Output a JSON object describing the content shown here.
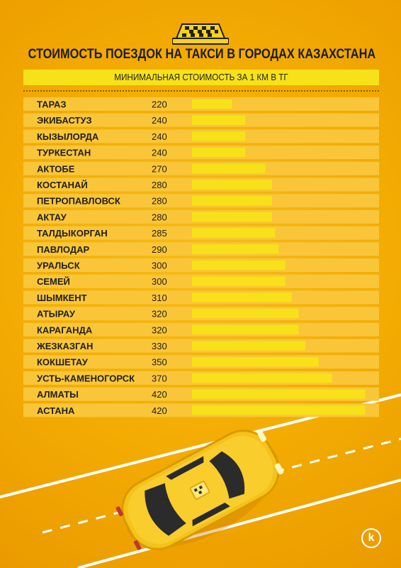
{
  "header": {
    "title": "СТОИМОСТЬ ПОЕЗДОК НА ТАКСИ В ГОРОДАХ КАЗАХСТАНА",
    "subtitle": "МИНИМАЛЬНАЯ СТОИМОСТЬ ЗА 1 КМ В ТГ"
  },
  "colors": {
    "background": "#f3ab02",
    "bar": "#f7e21a",
    "row_band": "#f9c63a",
    "text": "#1f1f1f"
  },
  "icons": {
    "taxi_sign": "taxi-roof-sign-icon",
    "car": "taxi-car-illustration",
    "logo": "k-logo-icon"
  },
  "logo_text": "k",
  "chart_data": {
    "type": "bar",
    "orientation": "horizontal",
    "title": "СТОИМОСТЬ ПОЕЗДОК НА ТАКСИ В ГОРОДАХ КАЗАХСТАНА",
    "subtitle": "МИНИМАЛЬНАЯ СТОИМОСТЬ ЗА 1 КМ В ТГ",
    "categories": [
      "ТАРАЗ",
      "ЭКИБАСТУЗ",
      "КЫЗЫЛОРДА",
      "ТУРКЕСТАН",
      "АКТОБЕ",
      "КОСТАНАЙ",
      "ПЕТРОПАВЛОВСК",
      "АКТАУ",
      "ТАЛДЫКОРГАН",
      "ПАВЛОДАР",
      "УРАЛЬСК",
      "СЕМЕЙ",
      "ШЫМКЕНТ",
      "АТЫРАУ",
      "КАРАГАНДА",
      "ЖЕЗКАЗГАН",
      "КОКШЕТАУ",
      "УСТЬ-КАМЕНОГОРСК",
      "АЛМАТЫ",
      "АСТАНА"
    ],
    "values": [
      220,
      240,
      240,
      240,
      270,
      280,
      280,
      280,
      285,
      290,
      300,
      300,
      310,
      320,
      320,
      330,
      350,
      370,
      420,
      420
    ],
    "data_labels": [
      "220",
      "240",
      "240",
      "240",
      "270",
      "280",
      "280",
      "280",
      "285",
      "290",
      "300",
      "300",
      "310",
      "320",
      "320",
      "330",
      "350",
      "370",
      "420",
      "420"
    ],
    "xlim": [
      160,
      425
    ],
    "grid": false,
    "legend": "none"
  }
}
